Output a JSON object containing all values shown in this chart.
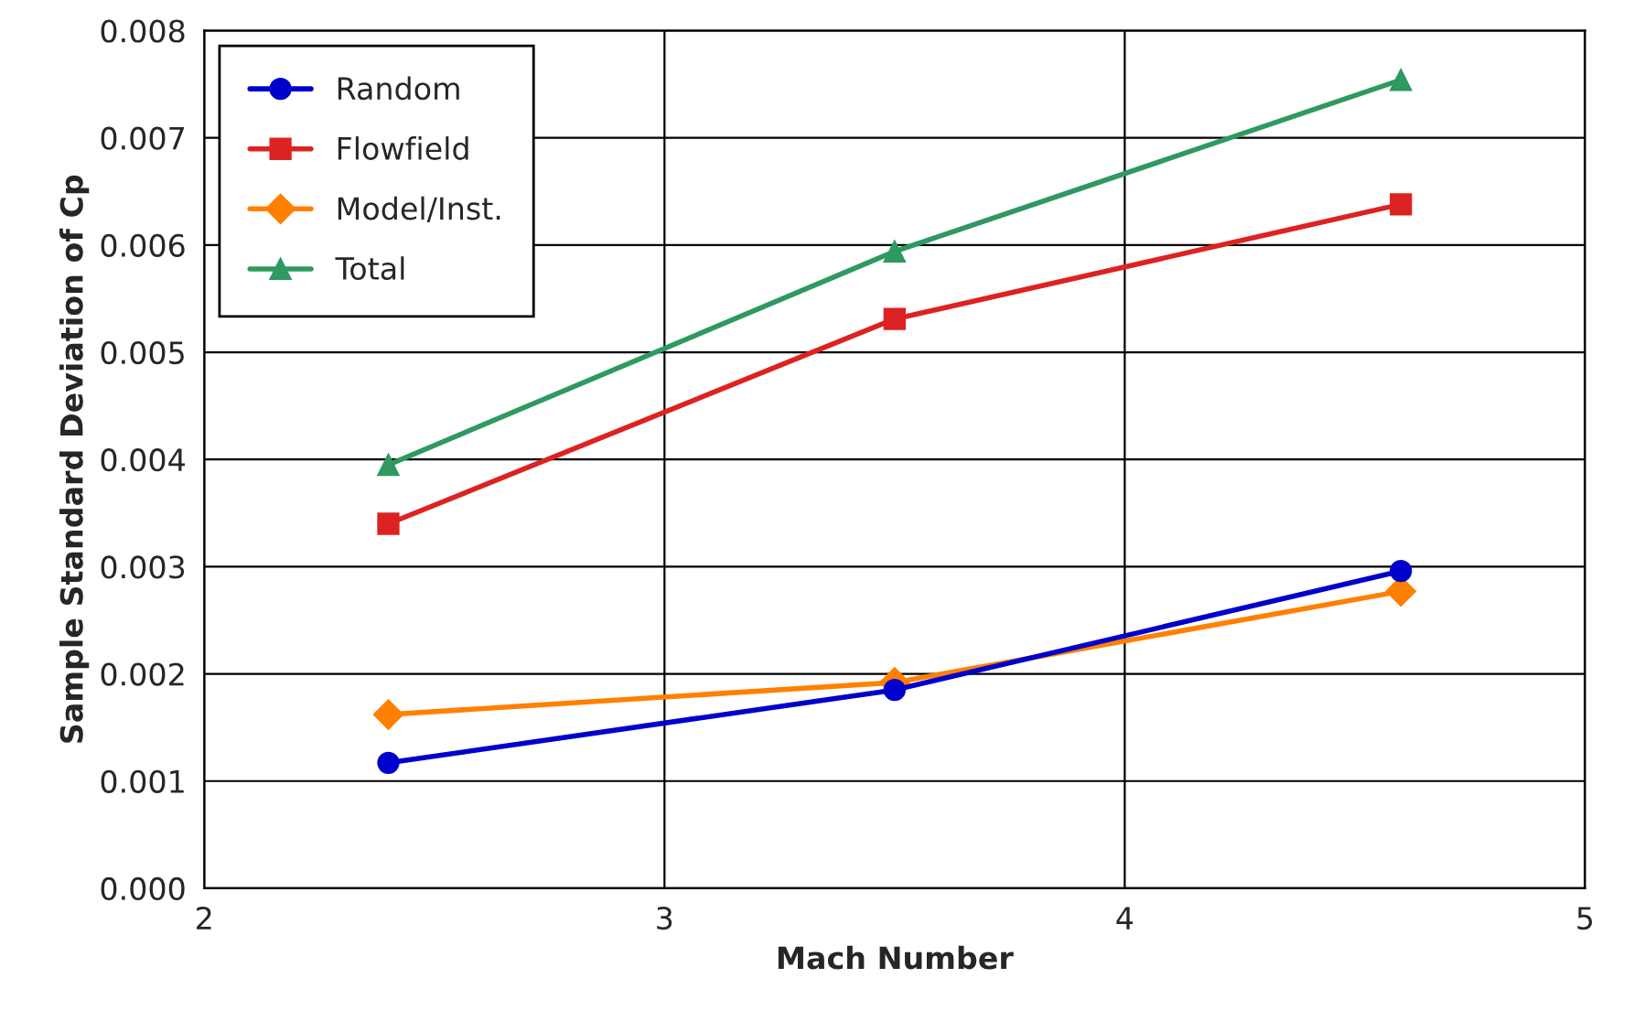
{
  "chart_data": {
    "type": "line",
    "xlabel": "Mach Number",
    "ylabel": "Sample Standard Deviation of Cp",
    "x": [
      2.4,
      3.5,
      4.6
    ],
    "series": [
      {
        "name": "Random",
        "color": "#0000cc",
        "marker": "circle",
        "values": [
          0.00117,
          0.00185,
          0.00296
        ]
      },
      {
        "name": "Flowfield",
        "color": "#dd2222",
        "marker": "square",
        "values": [
          0.0034,
          0.00531,
          0.00638
        ]
      },
      {
        "name": "Model/Inst.",
        "color": "#ff8000",
        "marker": "diamond",
        "values": [
          0.00162,
          0.00192,
          0.00277
        ]
      },
      {
        "name": "Total",
        "color": "#2e9960",
        "marker": "triangle",
        "values": [
          0.00395,
          0.00594,
          0.00754
        ]
      }
    ],
    "xlim": [
      2,
      5
    ],
    "xticks": [
      2,
      3,
      4,
      5
    ],
    "ylim": [
      0,
      0.008
    ],
    "yticks": [
      {
        "value": 0,
        "label": "0.000"
      },
      {
        "value": 0.001,
        "label": "0.001"
      },
      {
        "value": 0.002,
        "label": "0.002"
      },
      {
        "value": 0.003,
        "label": "0.003"
      },
      {
        "value": 0.004,
        "label": "0.004"
      },
      {
        "value": 0.005,
        "label": "0.005"
      },
      {
        "value": 0.006,
        "label": "0.006"
      },
      {
        "value": 0.007,
        "label": "0.007"
      },
      {
        "value": 0.008,
        "label": "0.008"
      }
    ],
    "grid": true,
    "legend": "top left",
    "line_style": "solid"
  }
}
